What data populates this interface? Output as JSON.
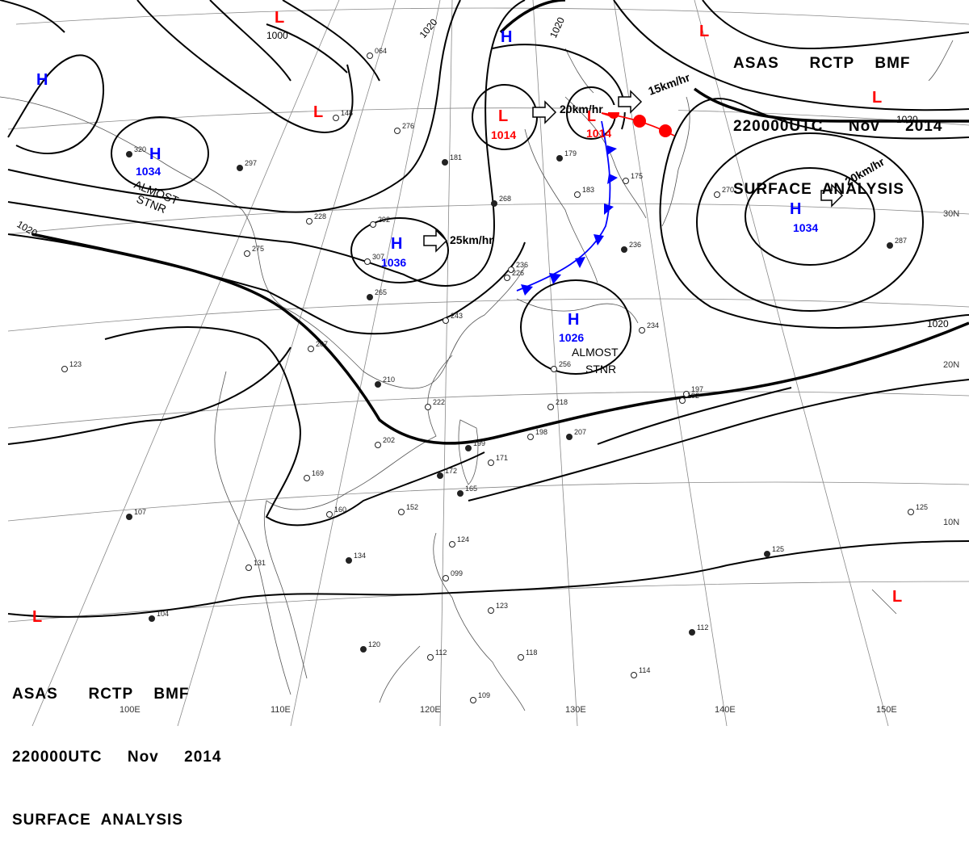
{
  "header_top": {
    "line1": [
      "ASAS",
      "RCTP",
      "BMF"
    ],
    "line2": [
      "220000UTC",
      "Nov",
      "2014"
    ],
    "line3": "SURFACE  ANALYSIS"
  },
  "header_bottom": {
    "line1": [
      "ASAS",
      "RCTP",
      "BMF"
    ],
    "line2": [
      "220000UTC",
      "Nov",
      "2014"
    ],
    "line3": "SURFACE  ANALYSIS"
  },
  "colors": {
    "high": "#0000ff",
    "low": "#ff0000",
    "isobar": "#000000",
    "grid": "#777777"
  },
  "pressure_centers": [
    {
      "type": "H",
      "value": "1034",
      "motion": ""
    },
    {
      "type": "H",
      "value": "1036",
      "motion": "25km/hr"
    },
    {
      "type": "H",
      "value": "1026",
      "motion": ""
    },
    {
      "type": "H",
      "value": "1034",
      "motion": "20km/hr"
    },
    {
      "type": "H",
      "value": "",
      "motion": ""
    },
    {
      "type": "H",
      "value": "",
      "motion": ""
    },
    {
      "type": "L",
      "value": "1014",
      "motion": "20km/hr"
    },
    {
      "type": "L",
      "value": "1014",
      "motion": "15km/hr"
    },
    {
      "type": "L",
      "value": "",
      "motion": ""
    },
    {
      "type": "L",
      "value": "",
      "motion": ""
    },
    {
      "type": "L",
      "value": "",
      "motion": ""
    },
    {
      "type": "L",
      "value": "",
      "motion": ""
    },
    {
      "type": "L",
      "value": "",
      "motion": ""
    },
    {
      "type": "L",
      "value": "",
      "motion": ""
    }
  ],
  "notes": [
    "ALMOST",
    "STNR",
    "ALMOST",
    "STNR"
  ],
  "isobar_labels": [
    "1000",
    "1020",
    "1020",
    "1020",
    "1020",
    "1020"
  ],
  "grid_labels": {
    "longitudes": [
      "100E",
      "110E",
      "120E",
      "130E",
      "140E",
      "150E"
    ],
    "latitudes": [
      "30N",
      "20N",
      "10N"
    ]
  },
  "station_values": [
    "320",
    "292",
    "307",
    "268",
    "228",
    "275",
    "265",
    "243",
    "222",
    "210",
    "207",
    "202",
    "199",
    "198",
    "218",
    "207",
    "197",
    "192",
    "172",
    "171",
    "169",
    "165",
    "160",
    "152",
    "134",
    "131",
    "125",
    "125",
    "124",
    "123",
    "120",
    "118",
    "114",
    "112",
    "112",
    "109",
    "104",
    "099",
    "270",
    "287",
    "236",
    "234",
    "179",
    "183",
    "175",
    "181",
    "148",
    "276",
    "297",
    "064",
    "123",
    "107",
    "226",
    "256",
    "236"
  ]
}
